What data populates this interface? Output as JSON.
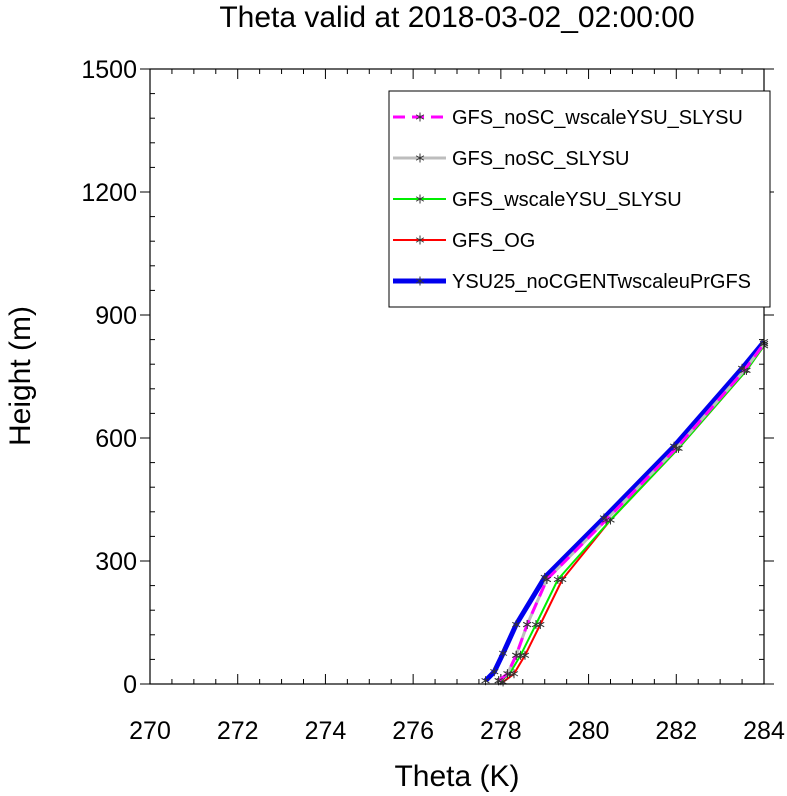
{
  "chart_data": {
    "type": "line",
    "title": "Theta valid at 2018-03-02_02:00:00",
    "xlabel": "Theta (K)",
    "ylabel": "Height (m)",
    "xlim": [
      270,
      284
    ],
    "ylim": [
      0,
      1500
    ],
    "xticks": [
      "270",
      "272",
      "274",
      "276",
      "278",
      "280",
      "282",
      "284"
    ],
    "yticks": [
      "0",
      "300",
      "600",
      "900",
      "1200",
      "1500"
    ],
    "grid": false,
    "legend_position": "top-right",
    "series": [
      {
        "name": "GFS_noSC_wscaleYSU_SLYSU",
        "color": "#ff00ff",
        "dash": "dashed",
        "x": [
          277.95,
          278.15,
          278.35,
          278.6,
          279.05,
          280.4,
          282.0,
          283.55,
          284.0
        ],
        "y": [
          8,
          25,
          70,
          145,
          255,
          400,
          575,
          765,
          830
        ]
      },
      {
        "name": "GFS_noSC_SLYSU",
        "color": "#bdbdbd",
        "dash": "solid",
        "x": [
          277.95,
          278.15,
          278.35,
          278.6,
          279.05,
          280.4,
          282.0,
          283.55,
          284.0
        ],
        "y": [
          8,
          25,
          70,
          145,
          255,
          400,
          575,
          765,
          830
        ]
      },
      {
        "name": "GFS_wscaleYSU_SLYSU",
        "color": "#00ee00",
        "dash": "solid",
        "x": [
          278.0,
          278.2,
          278.45,
          278.8,
          279.3,
          280.5,
          282.05,
          283.6,
          284.0
        ],
        "y": [
          8,
          25,
          70,
          145,
          255,
          400,
          575,
          765,
          825
        ]
      },
      {
        "name": "GFS_OG",
        "color": "#ff0000",
        "dash": "solid",
        "x": [
          278.05,
          278.3,
          278.55,
          278.9,
          279.4,
          280.5,
          282.05,
          283.6,
          284.0
        ],
        "y": [
          5,
          25,
          70,
          145,
          255,
          400,
          575,
          765,
          825
        ]
      },
      {
        "name": "YSU25_noCGENTwscaleuPrGFS",
        "color": "#0000ee",
        "dash": "solid",
        "x": [
          277.65,
          277.85,
          278.05,
          278.35,
          279.0,
          280.35,
          281.95,
          283.5,
          284.0
        ],
        "y": [
          8,
          30,
          75,
          145,
          260,
          405,
          580,
          770,
          835
        ]
      }
    ]
  }
}
